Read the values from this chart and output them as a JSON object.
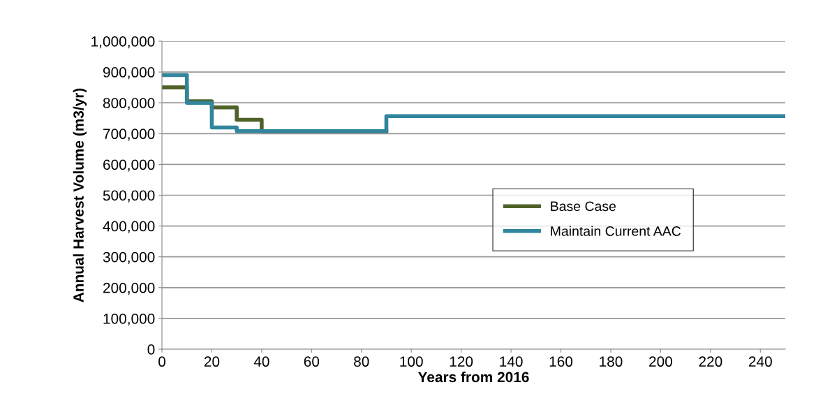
{
  "chart_data": {
    "type": "step",
    "xlabel": "Years from 2016",
    "ylabel": "Annual Harvest Volume (m3/yr)",
    "series": [
      {
        "name": "Base Case",
        "color": "#4f6228",
        "x": [
          0,
          10,
          20,
          30,
          40,
          90
        ],
        "values": [
          850000,
          805000,
          785000,
          745000,
          708000,
          708000
        ]
      },
      {
        "name": "Maintain Current AAC",
        "color": "#31859c",
        "x": [
          0,
          10,
          20,
          30,
          90,
          250
        ],
        "values": [
          890000,
          800000,
          720000,
          708000,
          757000,
          757000
        ]
      }
    ],
    "xlim": [
      0,
      250
    ],
    "xticks": [
      0,
      20,
      40,
      60,
      80,
      100,
      120,
      140,
      160,
      180,
      200,
      220,
      240
    ],
    "ylim": [
      0,
      1000000
    ],
    "yticks": [
      {
        "value": 0,
        "label": "0"
      },
      {
        "value": 100000,
        "label": "100,000"
      },
      {
        "value": 200000,
        "label": "200,000"
      },
      {
        "value": 300000,
        "label": "300,000"
      },
      {
        "value": 400000,
        "label": "400,000"
      },
      {
        "value": 500000,
        "label": "500,000"
      },
      {
        "value": 600000,
        "label": "600,000"
      },
      {
        "value": 700000,
        "label": "700,000"
      },
      {
        "value": 800000,
        "label": "800,000"
      },
      {
        "value": 900000,
        "label": "900,000"
      },
      {
        "value": 1000000,
        "label": "1,000,000"
      }
    ],
    "grid": "y",
    "legend": "right"
  }
}
